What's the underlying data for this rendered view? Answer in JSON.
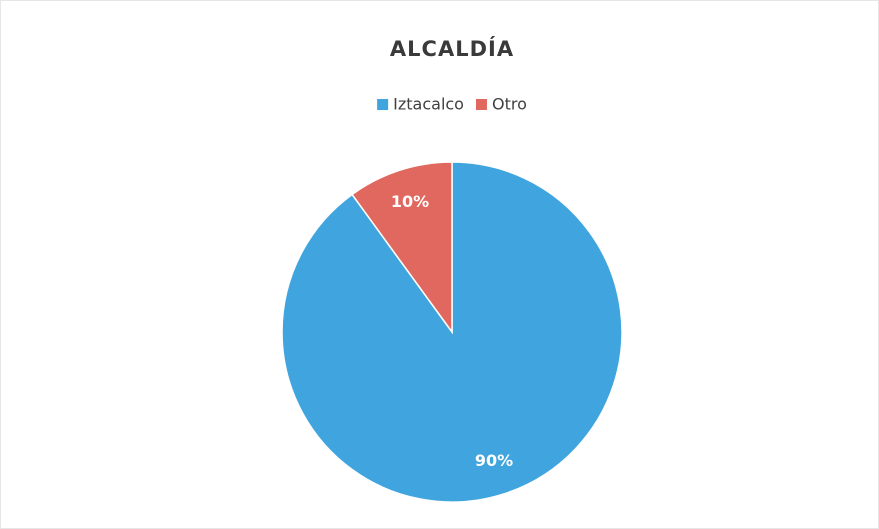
{
  "chart_data": {
    "type": "pie",
    "title": "ALCALDÍA",
    "categories": [
      "Iztacalco",
      "Otro"
    ],
    "values": [
      90,
      10
    ],
    "value_labels": [
      "90%",
      "10%"
    ],
    "colors": [
      "#40a4de",
      "#e0685f"
    ],
    "legend": "top"
  }
}
